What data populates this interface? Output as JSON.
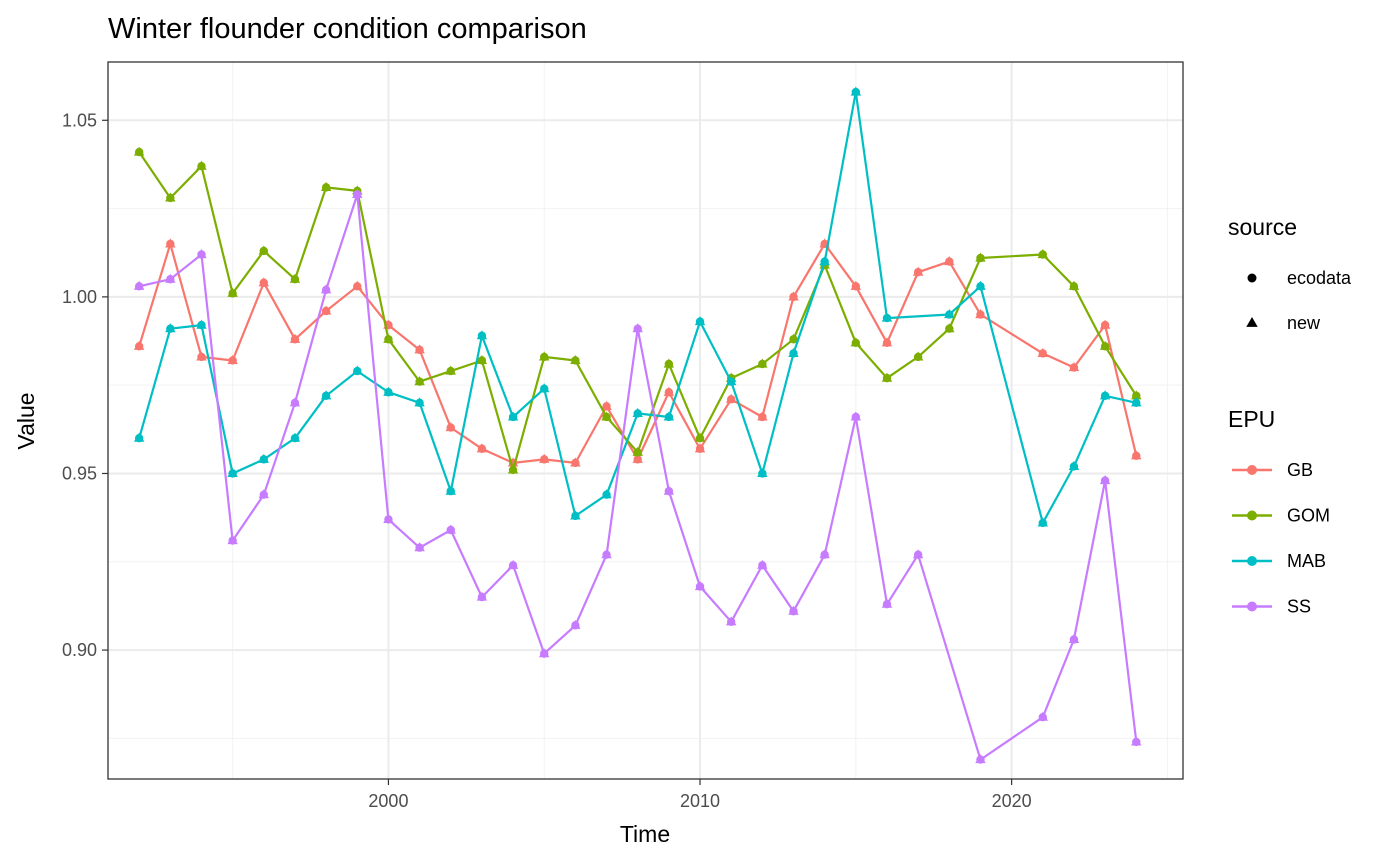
{
  "chart_data": {
    "type": "line",
    "title": "Winter flounder condition comparison",
    "xlabel": "Time",
    "ylabel": "Value",
    "xlim": [
      1991,
      2025.5
    ],
    "ylim": [
      0.8635,
      1.0665
    ],
    "x_ticks": [
      2000,
      2010,
      2020
    ],
    "x_tick_labels": [
      "2000",
      "2010",
      "2020"
    ],
    "y_ticks": [
      0.9,
      0.95,
      1.0,
      1.05
    ],
    "y_tick_labels": [
      "0.90",
      "0.95",
      "1.00",
      "1.05"
    ],
    "grid": true,
    "legend_position": "right",
    "legends": {
      "source": {
        "title": "source",
        "items": [
          {
            "label": "ecodata",
            "shape": "circle"
          },
          {
            "label": "new",
            "shape": "triangle"
          }
        ]
      },
      "epu": {
        "title": "EPU",
        "items": [
          {
            "label": "GB",
            "color": "#F8766D"
          },
          {
            "label": "GOM",
            "color": "#7CAE00"
          },
          {
            "label": "MAB",
            "color": "#00BFC4"
          },
          {
            "label": "SS",
            "color": "#C77CFF"
          }
        ]
      }
    },
    "series": [
      {
        "name": "GB",
        "color": "#F8766D",
        "x": [
          1992,
          1993,
          1994,
          1995,
          1996,
          1997,
          1998,
          1999,
          2000,
          2001,
          2002,
          2003,
          2004,
          2005,
          2006,
          2007,
          2008,
          2009,
          2010,
          2011,
          2012,
          2013,
          2014,
          2015,
          2016,
          2017,
          2018,
          2019,
          2021,
          2022,
          2023,
          2024
        ],
        "values": [
          0.986,
          1.015,
          0.983,
          0.982,
          1.004,
          0.988,
          0.996,
          1.003,
          0.992,
          0.985,
          0.963,
          0.957,
          0.953,
          0.954,
          0.953,
          0.969,
          0.954,
          0.973,
          0.957,
          0.971,
          0.966,
          1.0,
          1.015,
          1.003,
          0.987,
          1.007,
          1.01,
          0.995,
          0.984,
          0.98,
          0.992,
          0.955
        ]
      },
      {
        "name": "GOM",
        "color": "#7CAE00",
        "x": [
          1992,
          1993,
          1994,
          1995,
          1996,
          1997,
          1998,
          1999,
          2000,
          2001,
          2002,
          2003,
          2004,
          2005,
          2006,
          2007,
          2008,
          2009,
          2010,
          2011,
          2012,
          2013,
          2014,
          2015,
          2016,
          2017,
          2018,
          2019,
          2021,
          2022,
          2023,
          2024
        ],
        "values": [
          1.041,
          1.028,
          1.037,
          1.001,
          1.013,
          1.005,
          1.031,
          1.03,
          0.988,
          0.976,
          0.979,
          0.982,
          0.951,
          0.983,
          0.982,
          0.966,
          0.956,
          0.981,
          0.96,
          0.977,
          0.981,
          0.988,
          1.009,
          0.987,
          0.977,
          0.983,
          0.991,
          1.011,
          1.012,
          1.003,
          0.986,
          0.972
        ]
      },
      {
        "name": "MAB",
        "color": "#00BFC4",
        "x": [
          1992,
          1993,
          1994,
          1995,
          1996,
          1997,
          1998,
          1999,
          2000,
          2001,
          2002,
          2003,
          2004,
          2005,
          2006,
          2007,
          2008,
          2009,
          2010,
          2011,
          2012,
          2013,
          2014,
          2015,
          2016,
          2018,
          2019,
          2021,
          2022,
          2023,
          2024
        ],
        "values": [
          0.96,
          0.991,
          0.992,
          0.95,
          0.954,
          0.96,
          0.972,
          0.979,
          0.973,
          0.97,
          0.945,
          0.989,
          0.966,
          0.974,
          0.938,
          0.944,
          0.967,
          0.966,
          0.993,
          0.976,
          0.95,
          0.984,
          1.01,
          1.058,
          0.994,
          0.995,
          1.003,
          0.936,
          0.952,
          0.972,
          0.97
        ]
      },
      {
        "name": "SS",
        "color": "#C77CFF",
        "x": [
          1992,
          1993,
          1994,
          1995,
          1996,
          1997,
          1998,
          1999,
          2000,
          2001,
          2002,
          2003,
          2004,
          2005,
          2006,
          2007,
          2008,
          2009,
          2010,
          2011,
          2012,
          2013,
          2014,
          2015,
          2016,
          2017,
          2019,
          2021,
          2022,
          2023,
          2024
        ],
        "values": [
          1.003,
          1.005,
          1.012,
          0.931,
          0.944,
          0.97,
          1.002,
          1.029,
          0.937,
          0.929,
          0.934,
          0.915,
          0.924,
          0.899,
          0.907,
          0.927,
          0.991,
          0.945,
          0.918,
          0.908,
          0.924,
          0.911,
          0.927,
          0.966,
          0.913,
          0.927,
          0.869,
          0.881,
          0.903,
          0.948,
          0.874
        ]
      }
    ]
  }
}
